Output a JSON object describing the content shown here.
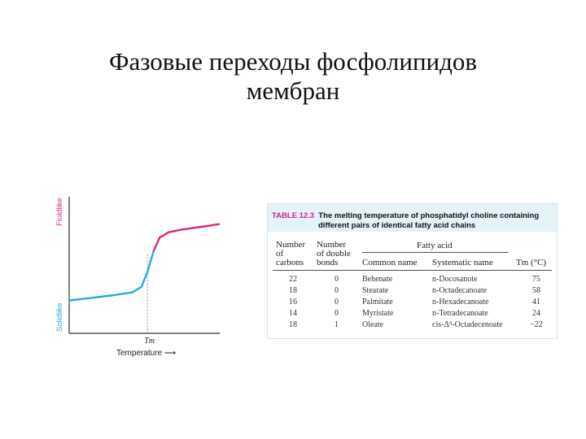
{
  "slide": {
    "title_line1": "Фазовые переходы фосфолипидов",
    "title_line2": "мембран"
  },
  "chart_data": {
    "type": "line",
    "title": "",
    "xlabel": "Temperature ⟶",
    "ylabel_top": "Fluidlike",
    "ylabel_bottom": "Solidlike",
    "x_marker_label": "Tm",
    "xlim": [
      0,
      100
    ],
    "ylim": [
      0,
      100
    ],
    "colors": {
      "solid": "#2aa7e0",
      "fluid": "#d4297d",
      "axis": "#333333"
    },
    "series": [
      {
        "x": [
          0,
          15,
          30,
          42,
          48,
          52,
          56,
          60,
          66,
          75,
          88,
          100
        ],
        "y": [
          24,
          26,
          28,
          30,
          34,
          45,
          60,
          70,
          74,
          76,
          78,
          80
        ]
      }
    ],
    "marker_x": 52
  },
  "table": {
    "number": "TABLE 12.3",
    "caption_line1": "The melting temperature of phosphatidyl choline containing",
    "caption_line2": "different pairs of identical fatty acid chains",
    "headers": {
      "carbons_1": "Number",
      "carbons_2": "of",
      "carbons_3": "carbons",
      "double_1": "Number",
      "double_2": "of double",
      "double_3": "bonds",
      "fatty_acid": "Fatty acid",
      "common": "Common name",
      "systematic": "Systematic name",
      "tm": "Tm (°C)"
    },
    "rows": [
      {
        "carbons": "22",
        "double": "0",
        "common": "Behenate",
        "systematic": "n-Docosanote",
        "tm": "75"
      },
      {
        "carbons": "18",
        "double": "0",
        "common": "Stearate",
        "systematic": "n-Octadecanoate",
        "tm": "58"
      },
      {
        "carbons": "16",
        "double": "0",
        "common": "Palmitate",
        "systematic": "n-Hexadecanoate",
        "tm": "41"
      },
      {
        "carbons": "14",
        "double": "0",
        "common": "Myristate",
        "systematic": "n-Tetradecanoate",
        "tm": "24"
      },
      {
        "carbons": "18",
        "double": "1",
        "common": "Oleate",
        "systematic": "cis-Δ⁹-Octadecenoate",
        "tm": "−22"
      }
    ]
  }
}
